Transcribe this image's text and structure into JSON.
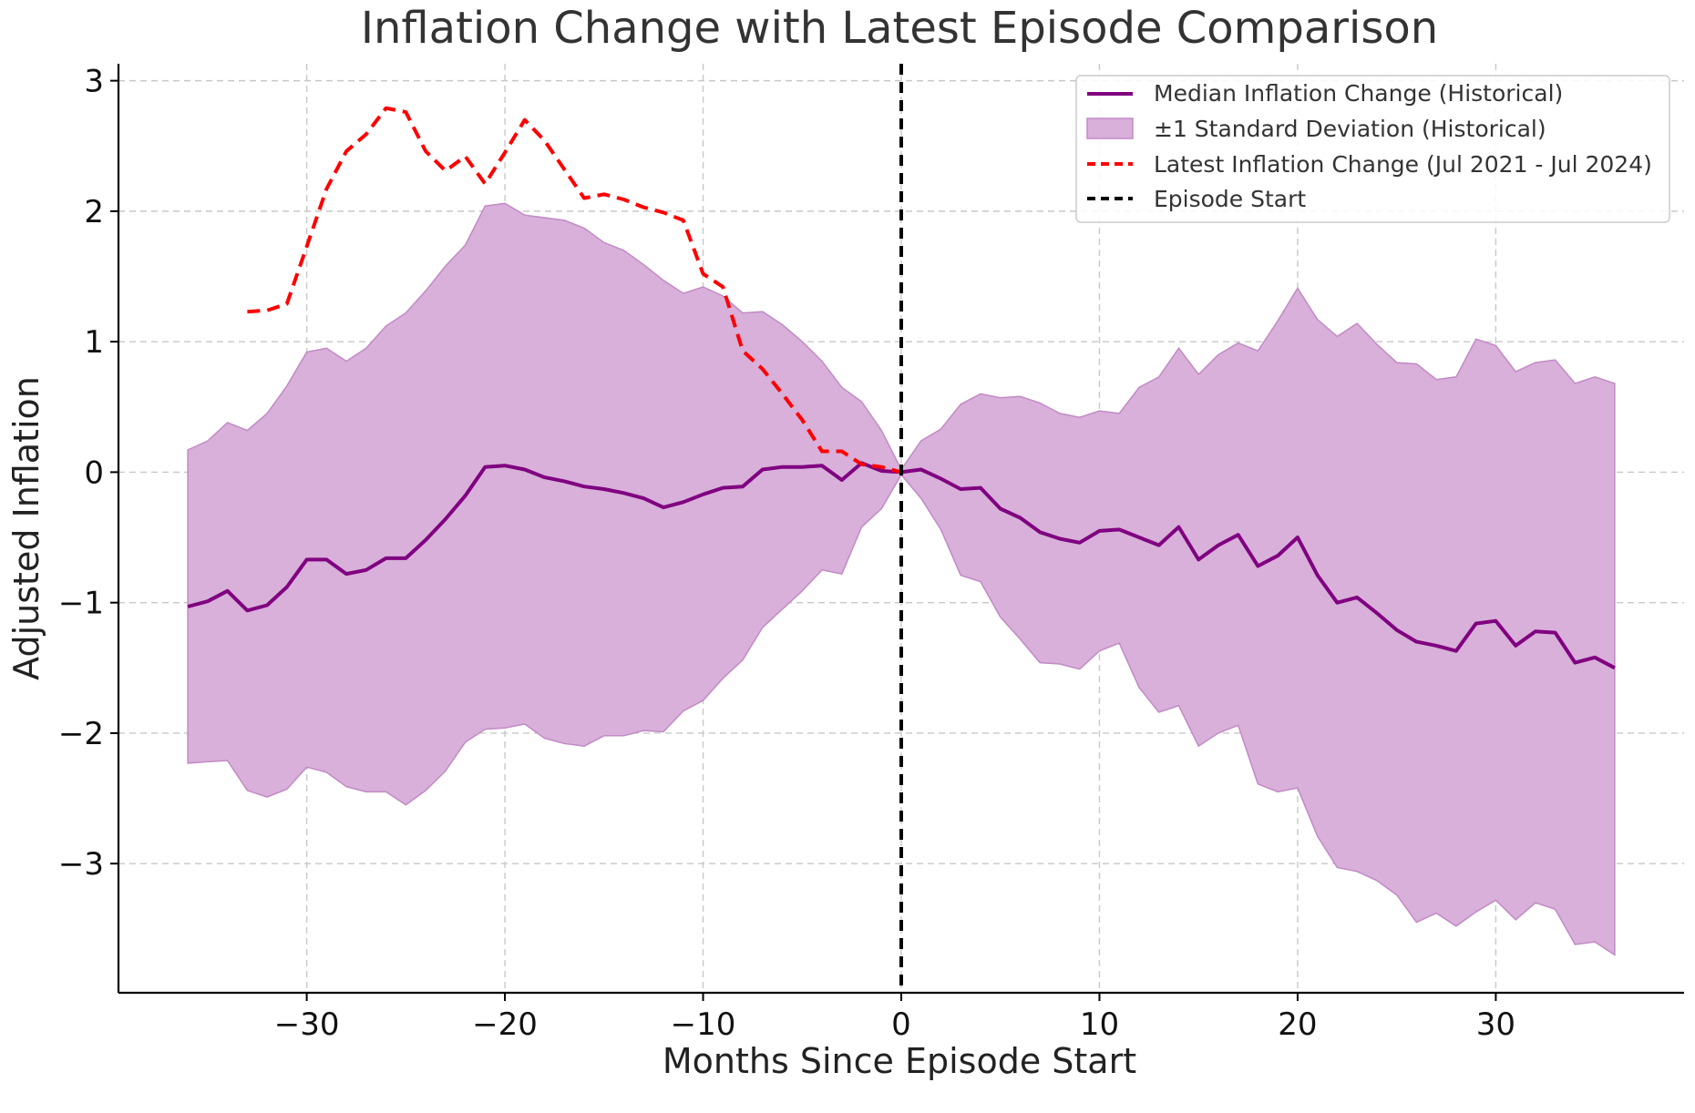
{
  "chart_data": {
    "type": "line",
    "title": "Inflation Change with Latest Episode Comparison",
    "xlabel": "Months Since Episode Start",
    "ylabel": "Adjusted Inflation",
    "xlim": [
      -39.5,
      39.5
    ],
    "ylim": [
      -3.99,
      3.13
    ],
    "grid": true,
    "legend_position": "top-right",
    "x_ticks": [
      -30,
      -20,
      -10,
      0,
      10,
      20,
      30
    ],
    "x_tick_labels": [
      "−30",
      "−20",
      "−10",
      "0",
      "10",
      "20",
      "30"
    ],
    "y_ticks": [
      -3,
      -2,
      -1,
      0,
      1,
      2,
      3
    ],
    "y_tick_labels": [
      "−3",
      "−2",
      "−1",
      "0",
      "1",
      "2",
      "3"
    ],
    "colors": {
      "median": "#800080",
      "band_fill": "#d8b0da",
      "band_edge": "#c28ac5",
      "latest": "#ff0000",
      "episode_start": "#000000"
    },
    "legend": [
      {
        "label": "Median Inflation Change (Historical)",
        "kind": "line",
        "color": "#800080"
      },
      {
        "label": "±1 Standard Deviation (Historical)",
        "kind": "patch",
        "color": "#d8b0da"
      },
      {
        "label": "Latest Inflation Change (Jul 2021 - Jul 2024)",
        "kind": "dashed",
        "color": "#ff0000"
      },
      {
        "label": "Episode Start",
        "kind": "dashed",
        "color": "#000000"
      }
    ],
    "vertical_line": {
      "x": 0
    },
    "series": [
      {
        "name": "Median Inflation Change (Historical)",
        "x": [
          -36,
          -35,
          -34,
          -33,
          -32,
          -31,
          -30,
          -29,
          -28,
          -27,
          -26,
          -25,
          -24,
          -23,
          -22,
          -21,
          -20,
          -19,
          -18,
          -17,
          -16,
          -15,
          -14,
          -13,
          -12,
          -11,
          -10,
          -9,
          -8,
          -7,
          -6,
          -5,
          -4,
          -3,
          -2,
          -1,
          0,
          1,
          2,
          3,
          4,
          5,
          6,
          7,
          8,
          9,
          10,
          11,
          12,
          13,
          14,
          15,
          16,
          17,
          18,
          19,
          20,
          21,
          22,
          23,
          24,
          25,
          26,
          27,
          28,
          29,
          30,
          31,
          32,
          33,
          34,
          35,
          36
        ],
        "values": [
          -1.03,
          -0.99,
          -0.91,
          -1.06,
          -1.02,
          -0.88,
          -0.67,
          -0.67,
          -0.78,
          -0.75,
          -0.66,
          -0.66,
          -0.52,
          -0.36,
          -0.18,
          0.04,
          0.05,
          0.02,
          -0.04,
          -0.07,
          -0.11,
          -0.13,
          -0.16,
          -0.2,
          -0.27,
          -0.23,
          -0.17,
          -0.12,
          -0.11,
          0.02,
          0.04,
          0.04,
          0.05,
          -0.06,
          0.07,
          0.01,
          0.0,
          0.02,
          -0.05,
          -0.13,
          -0.12,
          -0.28,
          -0.35,
          -0.46,
          -0.51,
          -0.54,
          -0.45,
          -0.44,
          -0.5,
          -0.56,
          -0.42,
          -0.67,
          -0.56,
          -0.48,
          -0.72,
          -0.64,
          -0.5,
          -0.79,
          -1.0,
          -0.96,
          -1.08,
          -1.21,
          -1.3,
          -1.33,
          -1.37,
          -1.16,
          -1.14,
          -1.33,
          -1.22,
          -1.23,
          -1.46,
          -1.42,
          -1.5
        ]
      },
      {
        "name": "±1 Standard Deviation (Historical)",
        "x": [
          -36,
          -35,
          -34,
          -33,
          -32,
          -31,
          -30,
          -29,
          -28,
          -27,
          -26,
          -25,
          -24,
          -23,
          -22,
          -21,
          -20,
          -19,
          -18,
          -17,
          -16,
          -15,
          -14,
          -13,
          -12,
          -11,
          -10,
          -9,
          -8,
          -7,
          -6,
          -5,
          -4,
          -3,
          -2,
          -1,
          0,
          1,
          2,
          3,
          4,
          5,
          6,
          7,
          8,
          9,
          10,
          11,
          12,
          13,
          14,
          15,
          16,
          17,
          18,
          19,
          20,
          21,
          22,
          23,
          24,
          25,
          26,
          27,
          28,
          29,
          30,
          31,
          32,
          33,
          34,
          35,
          36
        ],
        "upper": [
          0.17,
          0.24,
          0.38,
          0.32,
          0.45,
          0.66,
          0.92,
          0.95,
          0.85,
          0.95,
          1.12,
          1.22,
          1.39,
          1.58,
          1.74,
          2.04,
          2.06,
          1.97,
          1.95,
          1.93,
          1.87,
          1.76,
          1.7,
          1.59,
          1.47,
          1.37,
          1.42,
          1.35,
          1.22,
          1.23,
          1.13,
          1.0,
          0.85,
          0.65,
          0.54,
          0.32,
          0.02,
          0.24,
          0.33,
          0.52,
          0.6,
          0.57,
          0.58,
          0.53,
          0.45,
          0.42,
          0.47,
          0.45,
          0.65,
          0.73,
          0.95,
          0.75,
          0.9,
          0.99,
          0.93,
          1.16,
          1.41,
          1.17,
          1.04,
          1.14,
          0.98,
          0.84,
          0.83,
          0.71,
          0.73,
          1.02,
          0.97,
          0.77,
          0.84,
          0.86,
          0.68,
          0.73,
          0.68
        ],
        "lower": [
          -2.23,
          -2.22,
          -2.21,
          -2.44,
          -2.49,
          -2.43,
          -2.26,
          -2.3,
          -2.41,
          -2.45,
          -2.45,
          -2.55,
          -2.44,
          -2.29,
          -2.07,
          -1.97,
          -1.96,
          -1.93,
          -2.04,
          -2.08,
          -2.1,
          -2.02,
          -2.02,
          -1.98,
          -1.99,
          -1.83,
          -1.75,
          -1.58,
          -1.44,
          -1.19,
          -1.05,
          -0.91,
          -0.75,
          -0.78,
          -0.42,
          -0.28,
          -0.02,
          -0.2,
          -0.44,
          -0.79,
          -0.84,
          -1.11,
          -1.28,
          -1.46,
          -1.47,
          -1.51,
          -1.37,
          -1.31,
          -1.65,
          -1.84,
          -1.79,
          -2.1,
          -2.0,
          -1.94,
          -2.39,
          -2.45,
          -2.42,
          -2.79,
          -3.03,
          -3.06,
          -3.13,
          -3.24,
          -3.45,
          -3.38,
          -3.48,
          -3.37,
          -3.28,
          -3.43,
          -3.3,
          -3.35,
          -3.62,
          -3.6,
          -3.7
        ]
      },
      {
        "name": "Latest Inflation Change (Jul 2021 - Jul 2024)",
        "x": [
          -33,
          -32,
          -31,
          -30,
          -29,
          -28,
          -27,
          -26,
          -25,
          -24,
          -23,
          -22,
          -21,
          -20,
          -19,
          -18,
          -17,
          -16,
          -15,
          -14,
          -13,
          -12,
          -11,
          -10,
          -9,
          -8,
          -7,
          -6,
          -5,
          -4,
          -3,
          -2,
          -1,
          0
        ],
        "values": [
          1.23,
          1.24,
          1.29,
          1.73,
          2.17,
          2.46,
          2.59,
          2.79,
          2.76,
          2.46,
          2.31,
          2.42,
          2.21,
          2.45,
          2.7,
          2.54,
          2.32,
          2.1,
          2.13,
          2.09,
          2.03,
          1.99,
          1.93,
          1.52,
          1.42,
          0.93,
          0.79,
          0.6,
          0.4,
          0.16,
          0.16,
          0.06,
          0.04,
          0.0
        ]
      }
    ]
  }
}
